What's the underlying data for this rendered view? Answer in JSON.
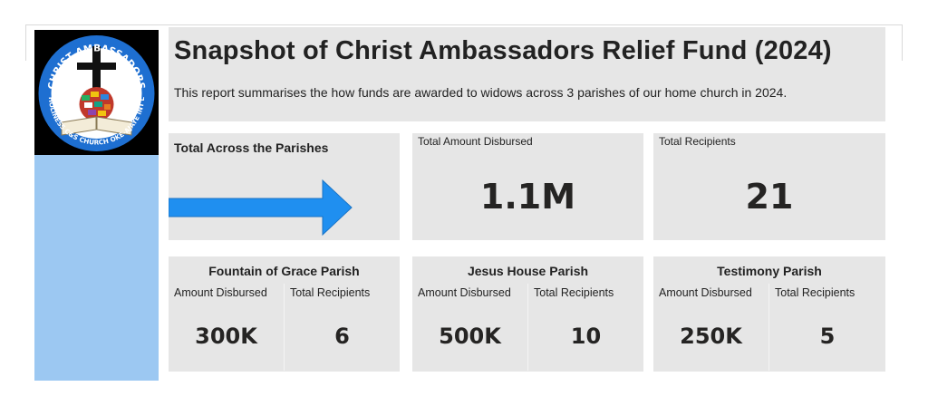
{
  "header": {
    "title": "Snapshot of Christ Ambassadors Relief Fund (2024)",
    "subtitle": "This report summarises the how funds are awarded to widows across 3 parishes of our home church in 2024."
  },
  "logo": {
    "top_text": "CHRIST AMBASSADORS",
    "bottom_text": "HOLINESS C&S CHURCH OKE-AJAYE INT'L"
  },
  "summary": {
    "label": "Total Across the Parishes",
    "arrow_color": "#1f8ff0"
  },
  "kpis": {
    "total_amount": {
      "label": "Total Amount Disbursed",
      "value": "1.1M"
    },
    "total_recipients": {
      "label": "Total Recipients",
      "value": "21"
    }
  },
  "parishes": [
    {
      "name": "Fountain of Grace Parish",
      "amount_label": "Amount Disbursed",
      "amount": "300K",
      "recipients_label": "Total Recipients",
      "recipients": "6"
    },
    {
      "name": "Jesus House Parish",
      "amount_label": "Amount Disbursed",
      "amount": "500K",
      "recipients_label": "Total Recipients",
      "recipients": "10"
    },
    {
      "name": "Testimony Parish",
      "amount_label": "Amount Disbursed",
      "amount": "250K",
      "recipients_label": "Total Recipients",
      "recipients": "5"
    }
  ],
  "colors": {
    "sidebar": "#9cc8f2",
    "panel": "#e6e6e6",
    "arrow": "#1f8ff0"
  }
}
